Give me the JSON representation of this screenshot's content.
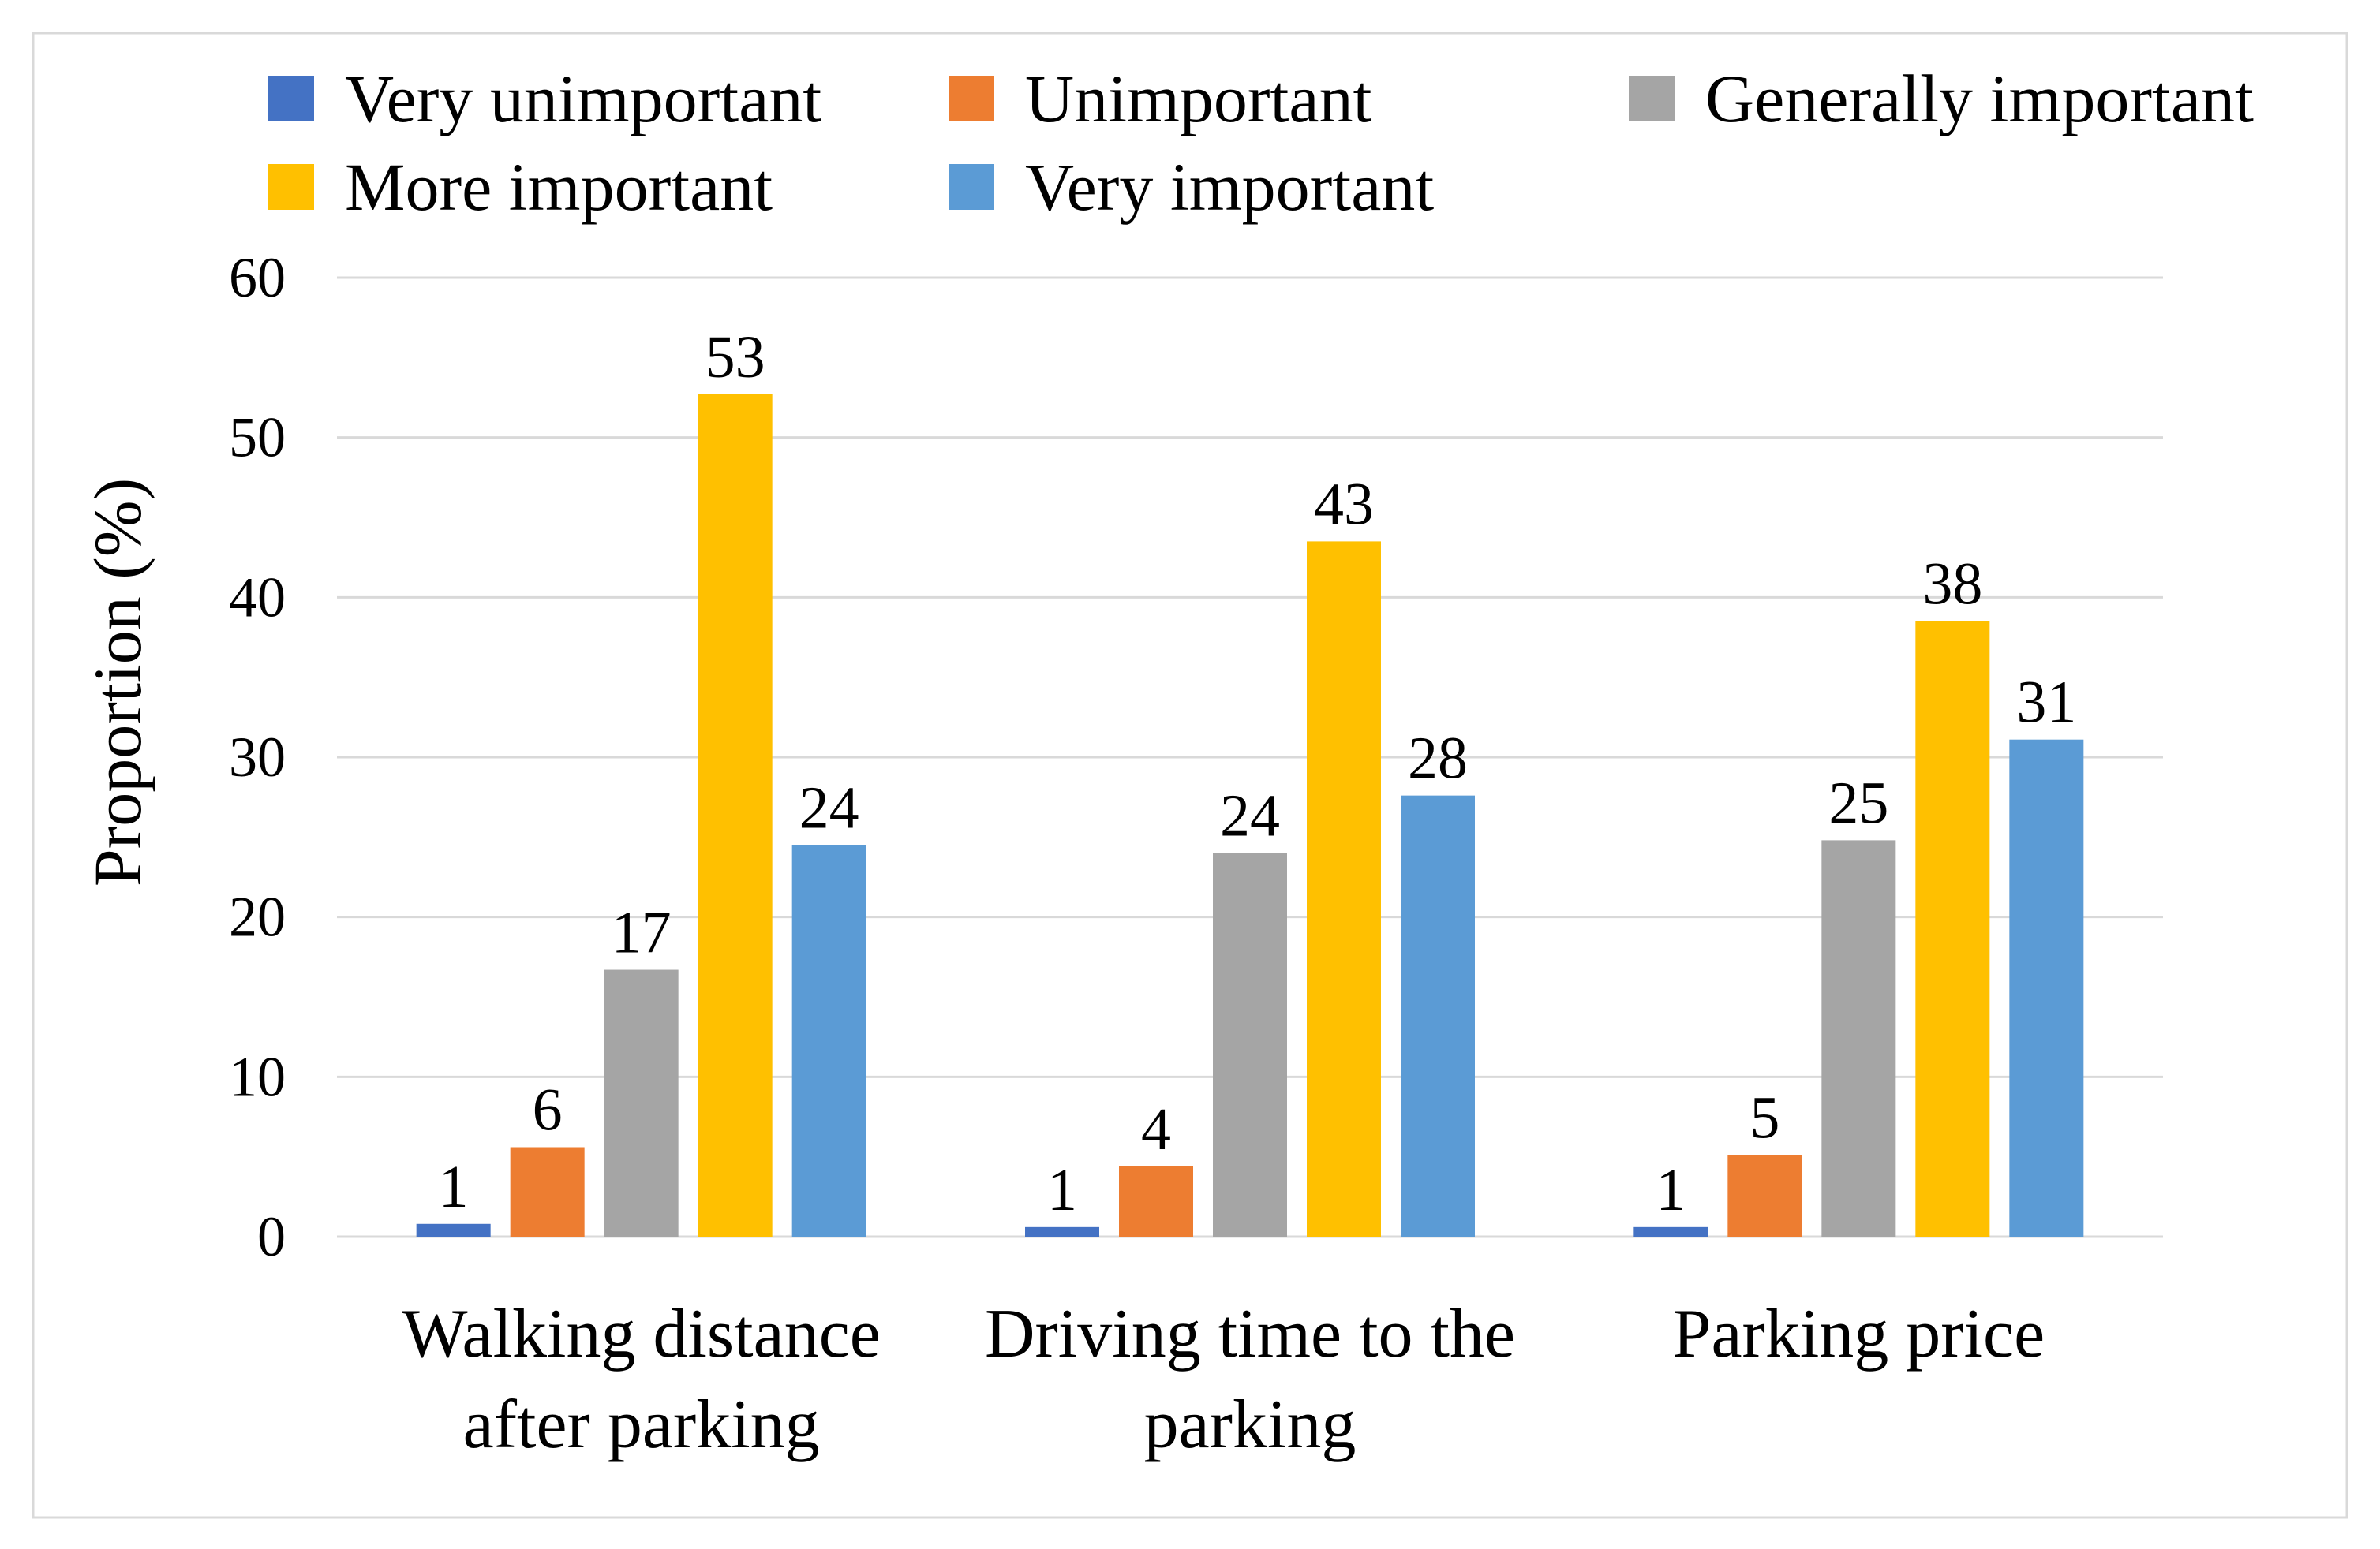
{
  "chart_data": {
    "type": "bar",
    "title": "",
    "xlabel": "",
    "ylabel": "Proportion (%)",
    "ylim": [
      0,
      60
    ],
    "yticks": [
      0,
      10,
      20,
      30,
      40,
      50,
      60
    ],
    "grid": true,
    "legend_position": "top",
    "categories": [
      [
        "Walking distance",
        "after parking"
      ],
      [
        "Driving time to the",
        "parking"
      ],
      [
        "Parking price"
      ]
    ],
    "series": [
      {
        "name": "Very unimportant",
        "color": "#4472C4",
        "values": [
          0.8,
          0.6,
          0.6
        ],
        "labels": [
          "1",
          "1",
          "1"
        ]
      },
      {
        "name": "Unimportant",
        "color": "#ED7D31",
        "values": [
          5.6,
          4.4,
          5.1
        ],
        "labels": [
          "6",
          "4",
          "5"
        ]
      },
      {
        "name": "Generally important",
        "color": "#A5A5A5",
        "values": [
          16.7,
          24.0,
          24.8
        ],
        "labels": [
          "17",
          "24",
          "25"
        ]
      },
      {
        "name": "More important",
        "color": "#FFC000",
        "values": [
          52.7,
          43.5,
          38.5
        ],
        "labels": [
          "53",
          "43",
          "38"
        ]
      },
      {
        "name": "Very important",
        "color": "#5B9BD5",
        "values": [
          24.5,
          27.6,
          31.1
        ],
        "labels": [
          "24",
          "28",
          "31"
        ]
      }
    ]
  }
}
